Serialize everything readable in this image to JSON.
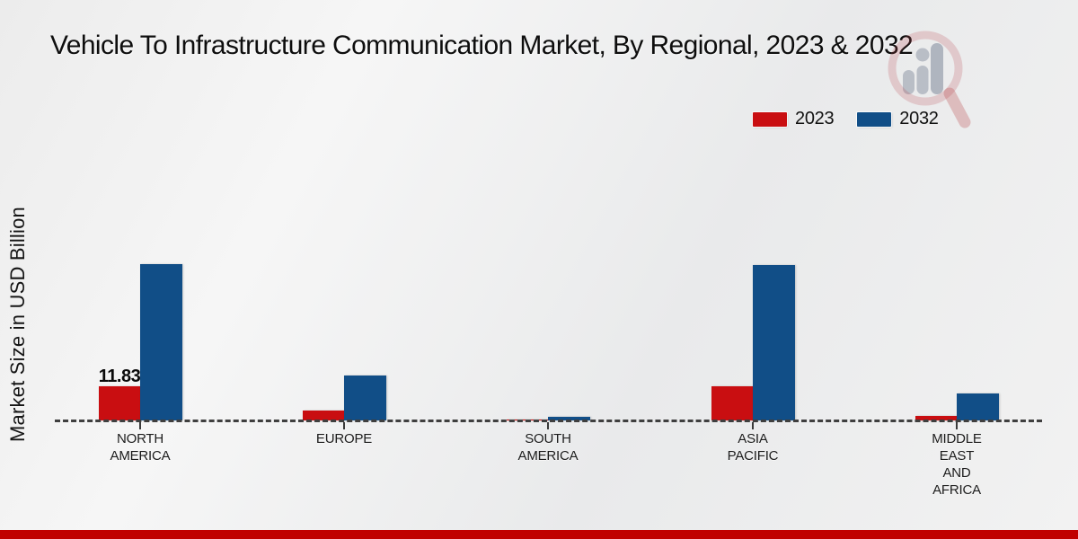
{
  "header": {
    "title": "Vehicle To Infrastructure Communication Market, By Regional, 2023 & 2032"
  },
  "axes": {
    "ylabel": "Market Size in USD Billion"
  },
  "legend": {
    "position": "top-right",
    "items": [
      {
        "label": "2023",
        "color": "#c90e11"
      },
      {
        "label": "2032",
        "color": "#114e87"
      }
    ]
  },
  "chart_data": {
    "type": "bar",
    "title": "Vehicle To Infrastructure Communication Market, By Regional, 2023 & 2032",
    "xlabel": "",
    "ylabel": "Market Size in USD Billion",
    "categories": [
      "NORTH AMERICA",
      "EUROPE",
      "SOUTH AMERICA",
      "ASIA PACIFIC",
      "MIDDLE EAST AND AFRICA"
    ],
    "category_label_lines": [
      [
        "NORTH",
        "AMERICA"
      ],
      [
        "EUROPE"
      ],
      [
        "SOUTH",
        "AMERICA"
      ],
      [
        "ASIA",
        "PACIFIC"
      ],
      [
        "MIDDLE",
        "EAST",
        "AND",
        "AFRICA"
      ]
    ],
    "series": [
      {
        "name": "2023",
        "color": "#c90e11",
        "values": [
          11.83,
          3.5,
          0.4,
          11.9,
          1.8
        ]
      },
      {
        "name": "2032",
        "color": "#114e87",
        "values": [
          53.5,
          15.4,
          1.4,
          53.2,
          9.5
        ]
      }
    ],
    "data_labels": [
      {
        "series": "2023",
        "category_index": 0,
        "text": "11.83"
      }
    ],
    "ylim": [
      0,
      60
    ],
    "grid": false,
    "baseline_style": "dashed",
    "legend_position": "top-right"
  },
  "footer": {
    "accent_bar_color": "#c00000"
  },
  "watermark": {
    "name": "magnifier-bar-chart-logo"
  }
}
